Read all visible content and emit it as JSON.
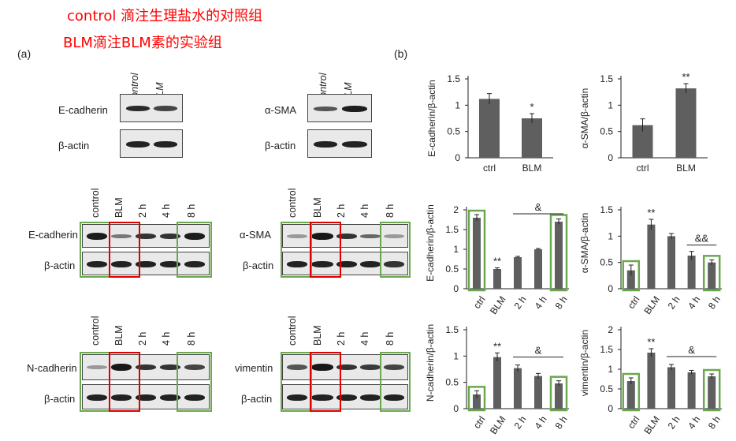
{
  "notes": {
    "line1": "control 滴注生理盐水的对照组",
    "line2": "BLM滴注BLM素的实验组"
  },
  "panels": {
    "a": "(a)",
    "b": "(b)"
  },
  "top_lanes": [
    "control",
    "BLM"
  ],
  "time_lanes": [
    "control",
    "BLM",
    "2 h",
    "4 h",
    "8 h"
  ],
  "blots": {
    "ecad_top": "E-cadherin",
    "actin": "β-actin",
    "asma_top": "α-SMA",
    "ecad_time": "E-cadherin",
    "asma_time": "α-SMA",
    "ncad_time": "N-cadherin",
    "vim_time": "vimentin"
  },
  "colors": {
    "highlight_red": "#e00000",
    "highlight_green": "#6aa84f",
    "bar": "#5f5f5f"
  },
  "chart_data": [
    {
      "type": "bar",
      "ylabel": "E-cadherin/β-actin",
      "categories": [
        "ctrl",
        "BLM"
      ],
      "values": [
        1.12,
        0.75
      ],
      "errors": [
        0.1,
        0.09
      ],
      "ylim": [
        0,
        1.5
      ],
      "ticks": [
        "0",
        "0.5",
        "1",
        "1.5"
      ],
      "stars": [
        "",
        "*"
      ]
    },
    {
      "type": "bar",
      "ylabel": "α-SMA/β-actin",
      "categories": [
        "ctrl",
        "BLM"
      ],
      "values": [
        0.62,
        1.32
      ],
      "errors": [
        0.12,
        0.09
      ],
      "ylim": [
        0,
        1.5
      ],
      "ticks": [
        "0",
        "0.5",
        "1",
        "1.5"
      ],
      "stars": [
        "",
        "**"
      ]
    },
    {
      "type": "bar",
      "ylabel": "E-cadherin/β-actin",
      "categories": [
        "ctrl",
        "BLM",
        "2 h",
        "4 h",
        "8 h"
      ],
      "values": [
        1.8,
        0.5,
        0.8,
        1.0,
        1.7
      ],
      "errors": [
        0.08,
        0.03,
        0.02,
        0.02,
        0.07
      ],
      "ylim": [
        0,
        2
      ],
      "ticks": [
        "0",
        "0.5",
        "1",
        "1.5",
        "2"
      ],
      "stars": [
        "",
        "**",
        "",
        "",
        ""
      ],
      "amp": "&"
    },
    {
      "type": "bar",
      "ylabel": "α-SMA/β-actin",
      "categories": [
        "ctrl",
        "BLM",
        "2 h",
        "4 h",
        "8 h"
      ],
      "values": [
        0.35,
        1.22,
        1.0,
        0.63,
        0.5
      ],
      "errors": [
        0.1,
        0.1,
        0.05,
        0.08,
        0.05
      ],
      "ylim": [
        0,
        1.5
      ],
      "ticks": [
        "0",
        "0.5",
        "1",
        "1.5"
      ],
      "stars": [
        "",
        "**",
        "",
        "",
        ""
      ],
      "amp": "&&"
    },
    {
      "type": "bar",
      "ylabel": "N-cadherin/β-actin",
      "categories": [
        "ctrl",
        "BLM",
        "2 h",
        "4 h",
        "8 h"
      ],
      "values": [
        0.27,
        0.98,
        0.77,
        0.62,
        0.48
      ],
      "errors": [
        0.07,
        0.08,
        0.06,
        0.05,
        0.05
      ],
      "ylim": [
        0,
        1.5
      ],
      "ticks": [
        "0",
        "0.5",
        "1",
        "1.5"
      ],
      "stars": [
        "",
        "**",
        "",
        "",
        ""
      ],
      "amp": "&"
    },
    {
      "type": "bar",
      "ylabel": "vimentin/β-actin",
      "categories": [
        "ctrl",
        "BLM",
        "2 h",
        "4 h",
        "8 h"
      ],
      "values": [
        0.7,
        1.42,
        1.05,
        0.92,
        0.82
      ],
      "errors": [
        0.08,
        0.1,
        0.07,
        0.05,
        0.06
      ],
      "ylim": [
        0,
        2
      ],
      "ticks": [
        "0",
        "0.5",
        "1",
        "1.5",
        "2"
      ],
      "stars": [
        "",
        "**",
        "",
        "",
        ""
      ],
      "amp": "&"
    }
  ]
}
